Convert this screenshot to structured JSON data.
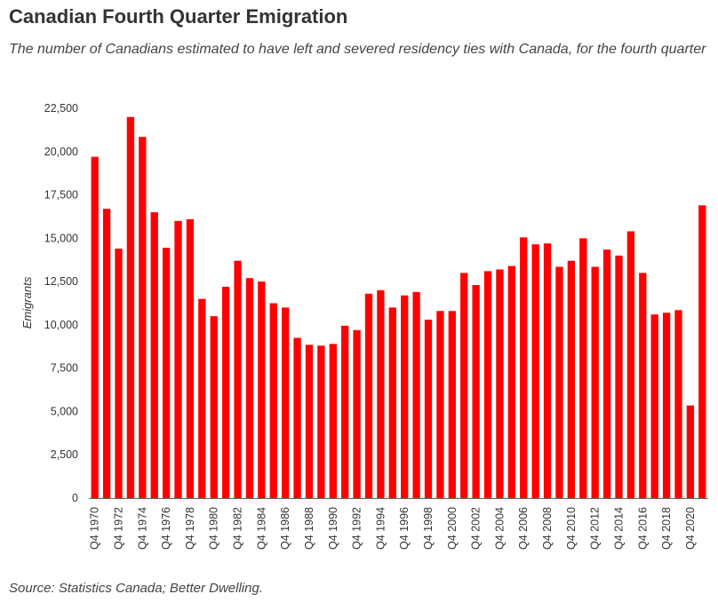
{
  "header": {
    "title": "Canadian Fourth Quarter Emigration",
    "subtitle": "The number of Canadians estimated to have left and severed residency ties with Canada, for the fourth quarter"
  },
  "footer": {
    "source": "Source: Statistics Canada; Better Dwelling."
  },
  "colors": {
    "bar": "#ff0000",
    "axis": "#666666"
  },
  "chart_data": {
    "type": "bar",
    "title": "Canadian Fourth Quarter Emigration",
    "subtitle": "The number of Canadians estimated to have left and severed residency ties with Canada, for the fourth quarter",
    "xlabel": "",
    "ylabel": "Emigrants",
    "ylim": [
      0,
      22500
    ],
    "yticks": [
      0,
      2500,
      5000,
      7500,
      10000,
      12500,
      15000,
      17500,
      20000,
      22500
    ],
    "ytick_labels": [
      "0",
      "2,500",
      "5,000",
      "7,500",
      "10,000",
      "12,500",
      "15,000",
      "17,500",
      "20,000",
      "22,500"
    ],
    "grid": false,
    "categories": [
      "Q4 1970",
      "Q4 1971",
      "Q4 1972",
      "Q4 1973",
      "Q4 1974",
      "Q4 1975",
      "Q4 1976",
      "Q4 1977",
      "Q4 1978",
      "Q4 1979",
      "Q4 1980",
      "Q4 1981",
      "Q4 1982",
      "Q4 1983",
      "Q4 1984",
      "Q4 1985",
      "Q4 1986",
      "Q4 1987",
      "Q4 1988",
      "Q4 1989",
      "Q4 1990",
      "Q4 1991",
      "Q4 1992",
      "Q4 1993",
      "Q4 1994",
      "Q4 1995",
      "Q4 1996",
      "Q4 1997",
      "Q4 1998",
      "Q4 1999",
      "Q4 2000",
      "Q4 2001",
      "Q4 2002",
      "Q4 2003",
      "Q4 2004",
      "Q4 2005",
      "Q4 2006",
      "Q4 2007",
      "Q4 2008",
      "Q4 2009",
      "Q4 2010",
      "Q4 2011",
      "Q4 2012",
      "Q4 2013",
      "Q4 2014",
      "Q4 2015",
      "Q4 2016",
      "Q4 2017",
      "Q4 2018",
      "Q4 2019",
      "Q4 2020",
      "Q4 2021"
    ],
    "xtick_labels": [
      "Q4 1970",
      "Q4 1972",
      "Q4 1974",
      "Q4 1976",
      "Q4 1978",
      "Q4 1980",
      "Q4 1982",
      "Q4 1984",
      "Q4 1986",
      "Q4 1988",
      "Q4 1990",
      "Q4 1992",
      "Q4 1994",
      "Q4 1996",
      "Q4 1998",
      "Q4 2000",
      "Q4 2002",
      "Q4 2004",
      "Q4 2006",
      "Q4 2008",
      "Q4 2010",
      "Q4 2012",
      "Q4 2014",
      "Q4 2016",
      "Q4 2018",
      "Q4 2020"
    ],
    "values": [
      19700,
      16700,
      14400,
      22000,
      20850,
      16500,
      14450,
      16000,
      16100,
      11500,
      10500,
      12200,
      13700,
      12700,
      12500,
      11250,
      11000,
      9250,
      8850,
      8800,
      8900,
      9950,
      9700,
      11800,
      12000,
      11000,
      11700,
      11900,
      10300,
      10800,
      10800,
      13000,
      12300,
      13100,
      13200,
      13400,
      15050,
      14650,
      14700,
      13350,
      13700,
      15000,
      13350,
      14350,
      14000,
      15400,
      13000,
      10600,
      10700,
      10850,
      5350,
      16900
    ]
  }
}
